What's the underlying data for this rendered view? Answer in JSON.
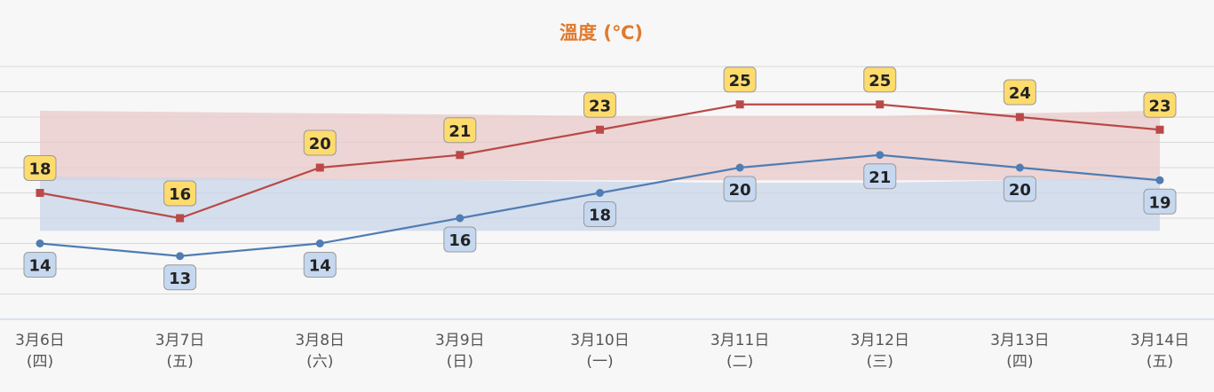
{
  "chart_data": {
    "type": "line",
    "title": "溫度 (℃)",
    "categories": [
      [
        "3月6日",
        "(四)"
      ],
      [
        "3月7日",
        "(五)"
      ],
      [
        "3月8日",
        "(六)"
      ],
      [
        "3月9日",
        "(日)"
      ],
      [
        "3月10日",
        "(一)"
      ],
      [
        "3月11日",
        "(二)"
      ],
      [
        "3月12日",
        "(三)"
      ],
      [
        "3月13日",
        "(四)"
      ],
      [
        "3月14日",
        "(五)"
      ]
    ],
    "series": [
      {
        "values": [
          18,
          16,
          20,
          21,
          23,
          25,
          25,
          24,
          23
        ],
        "color": "#b94a48",
        "marker": "square",
        "label_bg": "#fddb6d"
      },
      {
        "values": [
          14,
          13,
          14,
          16,
          18,
          20,
          21,
          20,
          19
        ],
        "color": "#4f7db3",
        "marker": "circle",
        "label_bg": "#c6d8f0"
      }
    ],
    "bands": [
      {
        "low": [
          19,
          19,
          19,
          19,
          19,
          19,
          19,
          19,
          19
        ],
        "high": [
          24.5,
          24.4,
          24.3,
          24.2,
          24.1,
          24.1,
          24.1,
          24.3,
          24.5
        ],
        "color": "#e9c9c9"
      },
      {
        "low": [
          15,
          15,
          15,
          15,
          15,
          15,
          15,
          15,
          15
        ],
        "high": [
          19.3,
          19.2,
          19.1,
          19.0,
          18.9,
          18.8,
          18.8,
          19.0,
          19.2
        ],
        "color": "#c9d6ea"
      }
    ],
    "ylim": [
      8,
      28
    ],
    "grid": true,
    "legend": "none"
  }
}
